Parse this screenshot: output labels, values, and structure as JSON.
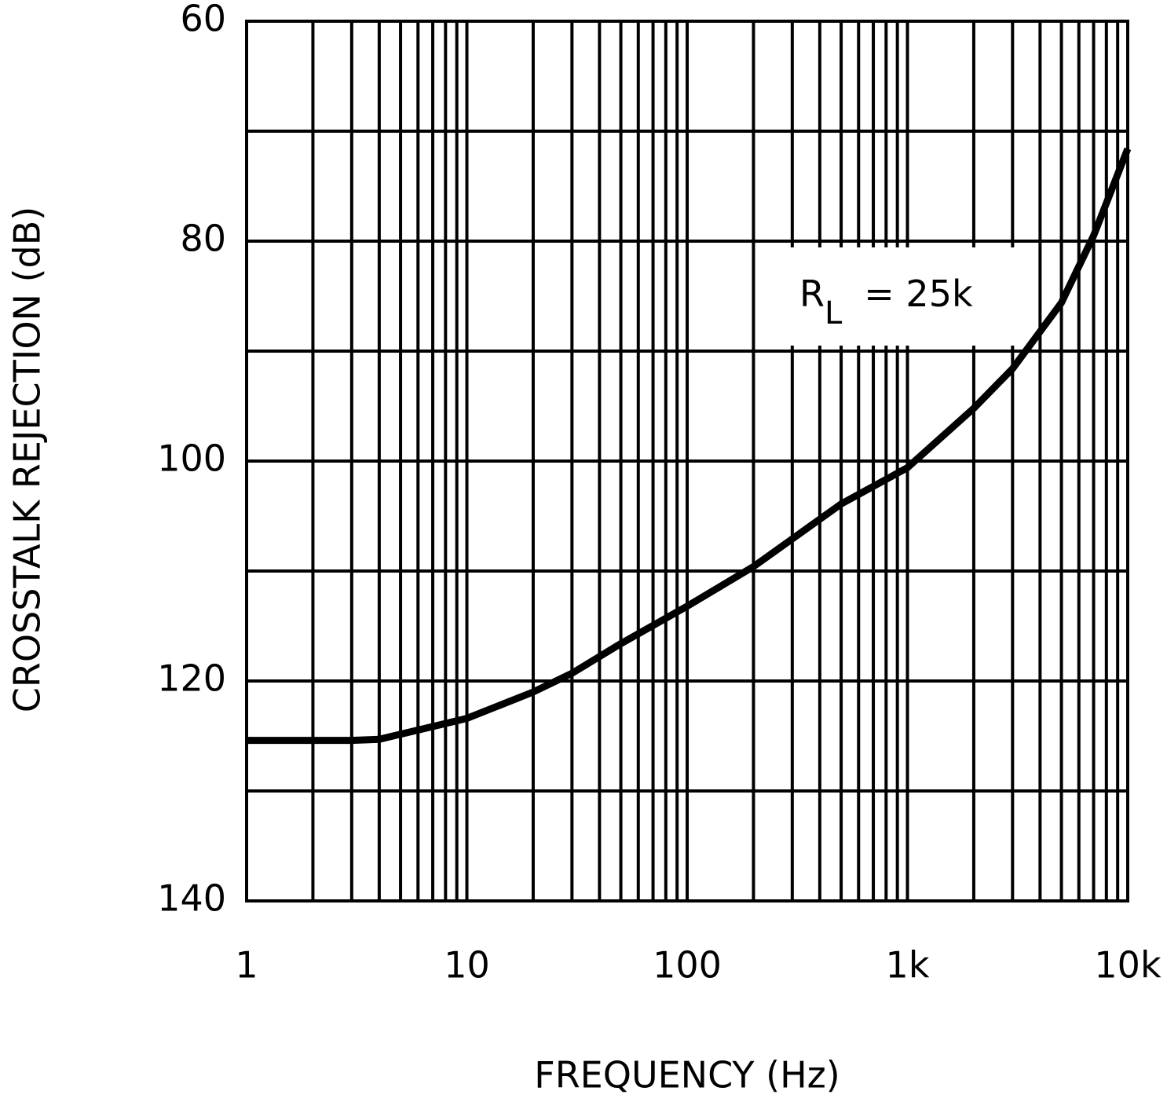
{
  "chart_data": {
    "type": "line",
    "x_label": "FREQUENCY (Hz)",
    "y_label": "CROSSTALK REJECTION (dB)",
    "annotation": {
      "main": "R",
      "sub": "L",
      "tail": "= 25k"
    },
    "x_log": true,
    "xlim": [
      1,
      10000
    ],
    "xticks": [
      1,
      10,
      100,
      {
        "value": 1000,
        "label": "1k"
      },
      {
        "value": 10000,
        "label": "10k"
      }
    ],
    "xminorticks": [
      2,
      3,
      4,
      5,
      6,
      7,
      8,
      9,
      20,
      30,
      40,
      50,
      60,
      70,
      80,
      90,
      200,
      300,
      400,
      500,
      600,
      700,
      800,
      900,
      2000,
      3000,
      4000,
      5000,
      6000,
      7000,
      8000,
      9000
    ],
    "ylim": [
      140,
      60
    ],
    "yticks": [
      140,
      120,
      100,
      80,
      60
    ],
    "yminorticks": [
      130,
      110,
      90,
      70
    ],
    "grid": true,
    "series": [
      {
        "color": "#000000",
        "x": [
          1,
          3,
          4,
          10,
          20,
          30,
          50,
          100,
          200,
          500,
          1000,
          2000,
          3000,
          5000,
          7000,
          10000
        ],
        "values": [
          125.4,
          125.4,
          125.3,
          123.4,
          121,
          119.3,
          116.6,
          113.2,
          109.6,
          103.9,
          100.6,
          95.2,
          91.6,
          85.6,
          79.5,
          71.6
        ]
      }
    ]
  }
}
